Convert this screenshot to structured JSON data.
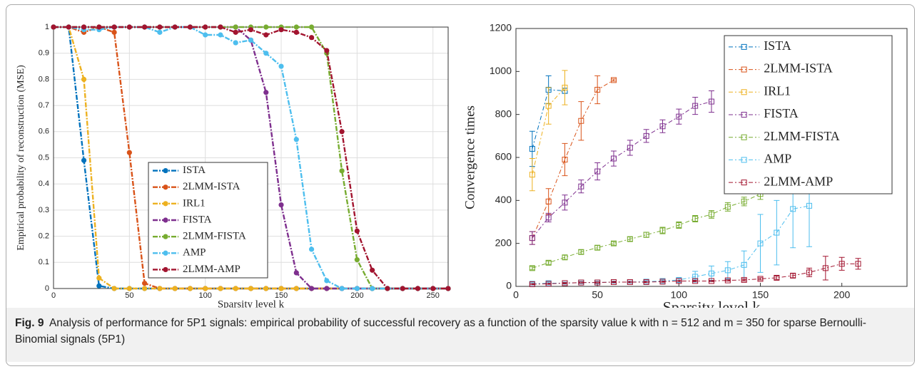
{
  "chart_data": [
    {
      "type": "line",
      "x_label": "Sparsity level k",
      "y_label": "Empirical probability of reconstruction (MSE)",
      "x": [
        0,
        10,
        20,
        30,
        40,
        50,
        60,
        70,
        80,
        90,
        100,
        110,
        120,
        130,
        140,
        150,
        160,
        170,
        180,
        190,
        200,
        210,
        220,
        230,
        240,
        250,
        260
      ],
      "xlim": [
        0,
        260
      ],
      "xticks": [
        0,
        50,
        100,
        150,
        200,
        250
      ],
      "ylim": [
        0,
        1
      ],
      "yticks": [
        0,
        0.1,
        0.2,
        0.3,
        0.4,
        0.5,
        0.6,
        0.7,
        0.8,
        0.9,
        1
      ],
      "grid": true,
      "legend": "lower left",
      "marker": "circle",
      "series": [
        {
          "name": "ISTA",
          "color": "#0072BD",
          "values": [
            1,
            1,
            0.49,
            0.01,
            0,
            0,
            0,
            0,
            0,
            0,
            0,
            0,
            0,
            0,
            0,
            0,
            0,
            0,
            0,
            0,
            0,
            0,
            0,
            0,
            0,
            0,
            0
          ]
        },
        {
          "name": "2LMM-ISTA",
          "color": "#D95319",
          "values": [
            1,
            1,
            0.98,
            1,
            0.98,
            0.52,
            0.02,
            0,
            0,
            0,
            0,
            0,
            0,
            0,
            0,
            0,
            0,
            0,
            0,
            0,
            0,
            0,
            0,
            0,
            0,
            0,
            0
          ]
        },
        {
          "name": "IRL1",
          "color": "#EDB120",
          "values": [
            1,
            1,
            0.8,
            0.04,
            0,
            0,
            0,
            0,
            0,
            0,
            0,
            0,
            0,
            0,
            0,
            0,
            0,
            0,
            0,
            0,
            0,
            0,
            0,
            0,
            0,
            0,
            0
          ]
        },
        {
          "name": "FISTA",
          "color": "#7E2F8E",
          "values": [
            1,
            1,
            1,
            1,
            1,
            1,
            1,
            1,
            1,
            1,
            1,
            1,
            1,
            0.95,
            0.75,
            0.32,
            0.06,
            0,
            0,
            0,
            0,
            0,
            0,
            0,
            0,
            0,
            0
          ]
        },
        {
          "name": "2LMM-FISTA",
          "color": "#77AC30",
          "values": [
            1,
            1,
            1,
            1,
            1,
            1,
            1,
            1,
            1,
            1,
            1,
            1,
            1,
            1,
            1,
            1,
            1,
            1,
            0.9,
            0.45,
            0.11,
            0,
            0,
            0,
            0,
            0,
            0
          ]
        },
        {
          "name": "AMP",
          "color": "#4DBEEE",
          "values": [
            1,
            1,
            0.99,
            0.99,
            1,
            1,
            1,
            0.98,
            1,
            1,
            0.97,
            0.97,
            0.94,
            0.95,
            0.9,
            0.85,
            0.57,
            0.15,
            0.03,
            0,
            0,
            0,
            0,
            0,
            0,
            0,
            0
          ]
        },
        {
          "name": "2LMM-AMP",
          "color": "#A2142F",
          "values": [
            1,
            1,
            1,
            1,
            1,
            1,
            1,
            1,
            1,
            1,
            1,
            1,
            0.98,
            0.99,
            0.97,
            0.99,
            0.98,
            0.96,
            0.91,
            0.6,
            0.22,
            0.07,
            0,
            0,
            0,
            0,
            0
          ]
        }
      ]
    },
    {
      "type": "errorbar",
      "x_label": "Sparsity level k",
      "y_label": "Convergence times",
      "xlim": [
        0,
        240
      ],
      "xticks": [
        0,
        50,
        100,
        150,
        200
      ],
      "ylim": [
        0,
        1200
      ],
      "yticks": [
        0,
        200,
        400,
        600,
        800,
        1000,
        1200
      ],
      "grid": false,
      "legend": "upper right",
      "marker": "square",
      "series": [
        {
          "name": "ISTA",
          "color": "#0072BD",
          "x": [
            10,
            20,
            30
          ],
          "values": [
            640,
            915,
            910
          ],
          "errors": [
            82,
            65,
            12
          ]
        },
        {
          "name": "2LMM-ISTA",
          "color": "#D95319",
          "x": [
            10,
            20,
            30,
            40,
            50,
            60
          ],
          "values": [
            225,
            395,
            590,
            770,
            915,
            960
          ],
          "errors": [
            30,
            60,
            75,
            90,
            65,
            5
          ]
        },
        {
          "name": "IRL1",
          "color": "#EDB120",
          "x": [
            10,
            20,
            30
          ],
          "values": [
            520,
            840,
            925
          ],
          "errors": [
            75,
            85,
            80
          ]
        },
        {
          "name": "FISTA",
          "color": "#7E2F8E",
          "x": [
            10,
            20,
            30,
            40,
            50,
            60,
            70,
            80,
            90,
            100,
            110,
            120
          ],
          "values": [
            225,
            320,
            390,
            465,
            535,
            595,
            645,
            700,
            745,
            790,
            840,
            860
          ],
          "errors": [
            30,
            20,
            35,
            30,
            40,
            35,
            35,
            30,
            30,
            35,
            40,
            50
          ]
        },
        {
          "name": "2LMM-FISTA",
          "color": "#77AC30",
          "x": [
            10,
            20,
            30,
            40,
            50,
            60,
            70,
            80,
            90,
            100,
            110,
            120,
            130,
            140,
            150,
            160
          ],
          "values": [
            85,
            110,
            135,
            160,
            180,
            200,
            220,
            240,
            260,
            285,
            315,
            335,
            370,
            395,
            430,
            480
          ],
          "errors": [
            8,
            8,
            10,
            10,
            10,
            8,
            10,
            12,
            15,
            15,
            15,
            18,
            20,
            20,
            25,
            25
          ]
        },
        {
          "name": "AMP",
          "color": "#4DBEEE",
          "x": [
            10,
            20,
            30,
            40,
            50,
            60,
            70,
            80,
            90,
            100,
            110,
            120,
            130,
            140,
            150,
            160,
            170,
            180
          ],
          "values": [
            12,
            15,
            15,
            18,
            18,
            20,
            20,
            22,
            25,
            30,
            45,
            60,
            75,
            100,
            200,
            250,
            360,
            375
          ],
          "errors": [
            5,
            5,
            5,
            5,
            5,
            5,
            5,
            5,
            5,
            10,
            25,
            35,
            40,
            65,
            135,
            150,
            180,
            190
          ]
        },
        {
          "name": "2LMM-AMP",
          "color": "#A2142F",
          "x": [
            10,
            20,
            30,
            40,
            50,
            60,
            70,
            80,
            90,
            100,
            110,
            120,
            130,
            140,
            150,
            160,
            170,
            180,
            190,
            200,
            210
          ],
          "values": [
            10,
            12,
            15,
            18,
            18,
            20,
            20,
            20,
            22,
            25,
            25,
            25,
            28,
            30,
            35,
            40,
            50,
            65,
            85,
            105,
            105
          ],
          "errors": [
            3,
            3,
            3,
            3,
            3,
            3,
            3,
            3,
            3,
            3,
            3,
            3,
            3,
            5,
            5,
            8,
            10,
            20,
            55,
            30,
            25
          ]
        }
      ]
    }
  ],
  "caption": {
    "label": "Fig. 9",
    "text": "Analysis of performance for 5P1 signals: empirical probability of successful recovery as a function of the sparsity value k with n = 512 and m = 350 for sparse Bernoulli-Binomial signals (5P1)"
  }
}
